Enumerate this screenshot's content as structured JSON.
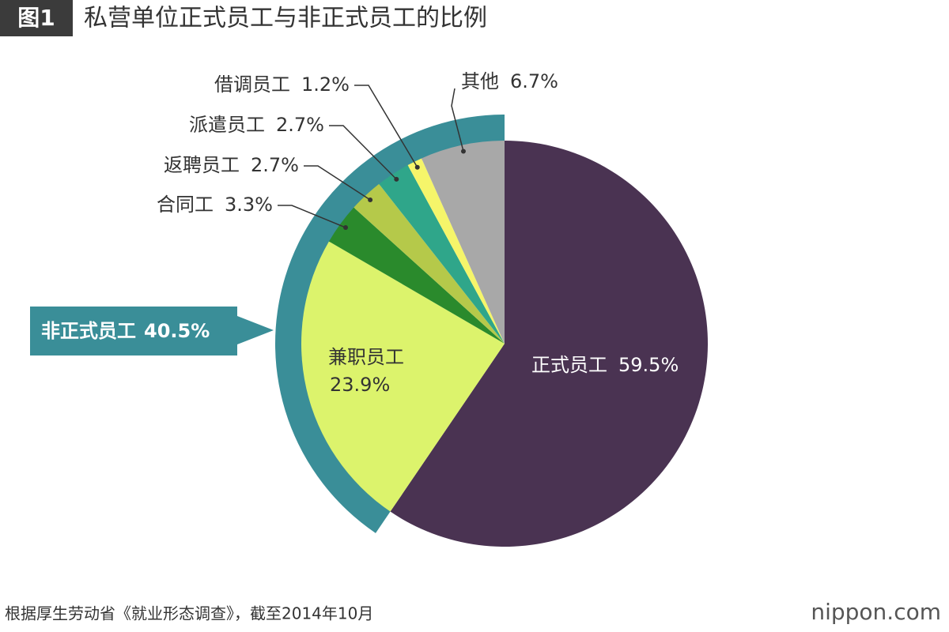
{
  "chart_data": {
    "type": "pie",
    "figure_label": "图1",
    "title": "私营单位正式员工与非正式员工的比例",
    "categories": [
      "正式员工",
      "兼职员工",
      "合同工",
      "返聘员工",
      "派遣员工",
      "借调员工",
      "其他"
    ],
    "values": [
      59.5,
      23.9,
      3.3,
      2.7,
      2.7,
      1.2,
      6.7
    ],
    "value_labels": [
      "59.5%",
      "23.9%",
      "3.3%",
      "2.7%",
      "2.7%",
      "1.2%",
      "6.7%"
    ],
    "colors": [
      "#4a3352",
      "#dcf36c",
      "#2a8a2c",
      "#b5c94a",
      "#2fa68a",
      "#f5f56a",
      "#a8a8a8"
    ],
    "group": {
      "label": "非正式员工",
      "value": 40.5,
      "value_label": "40.5%",
      "color": "#3a8e98"
    },
    "source": "根据厚生劳动省《就业形态调查》，截至2014年10月",
    "brand": "nippon.com"
  }
}
